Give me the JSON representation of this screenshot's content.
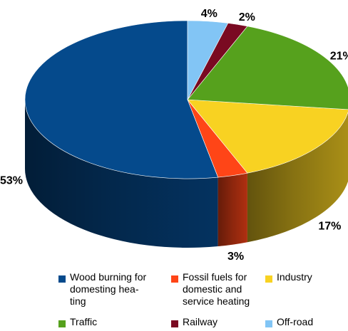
{
  "chart_data": {
    "type": "pie",
    "style": "3d",
    "start_angle": "12 o'clock",
    "direction": "counter-clockwise",
    "slices": [
      {
        "label": "Wood burning for domesting heating",
        "legend_text": "Wood burning for\ndomesting hea-\nting",
        "value": 53,
        "display": "53%",
        "color": "#054A8C"
      },
      {
        "label": "Fossil fuels for domestic and service heating",
        "legend_text": "Fossil fuels for\ndomestic and\nservice heating",
        "value": 3,
        "display": "3%",
        "color": "#FF4517"
      },
      {
        "label": "Industry",
        "legend_text": "Industry",
        "value": 17,
        "display": "17%",
        "color": "#F8D222"
      },
      {
        "label": "Traffic",
        "legend_text": "Traffic",
        "value": 21,
        "display": "21%",
        "color": "#56A11D"
      },
      {
        "label": "Railway",
        "legend_text": "Railway",
        "value": 2,
        "display": "2%",
        "color": "#7A0A22"
      },
      {
        "label": "Off-road",
        "legend_text": "Off-road",
        "value": 4,
        "display": "4%",
        "color": "#82C5F5"
      }
    ],
    "legend_position": "bottom"
  }
}
